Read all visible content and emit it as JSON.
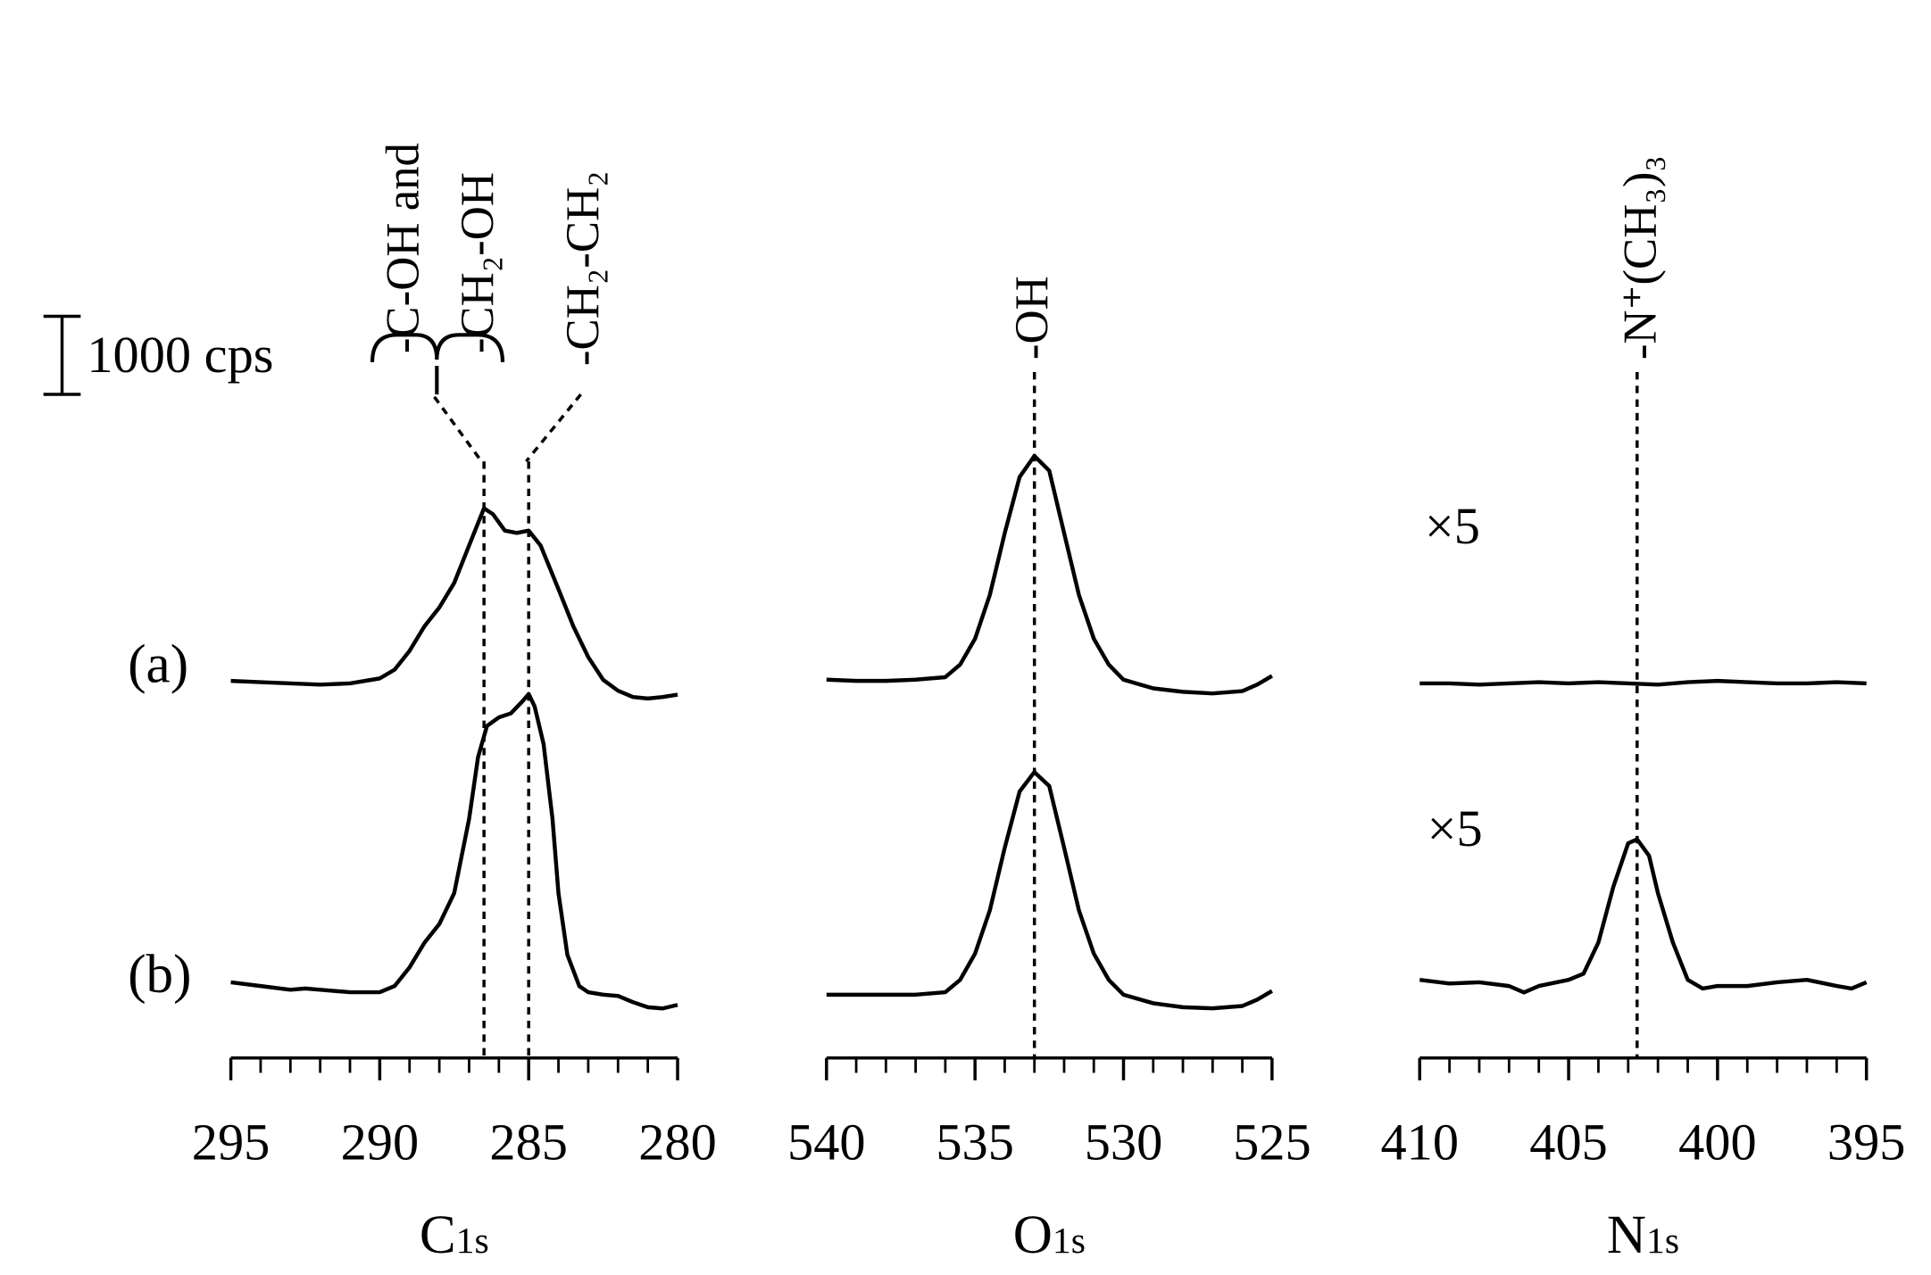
{
  "scale_bar": {
    "value": 1000,
    "label": "1000 cps"
  },
  "chart_data": [
    {
      "type": "line",
      "xlabel": "C",
      "xlabel_sub": "1s",
      "xlim": [
        295,
        280
      ],
      "xticks": [
        295,
        290,
        285,
        280
      ],
      "xticks_minor": [
        294,
        293,
        292,
        291,
        289,
        288,
        287,
        286,
        284,
        283,
        282,
        281
      ],
      "markers": [
        286.5,
        285
      ],
      "annotations": [
        "-C-OH and",
        "-CH₂-OH",
        "-CH₂-CH₂"
      ],
      "series": [
        {
          "name": "(a)",
          "color": "#000000",
          "x": [
            295,
            294,
            293,
            292,
            291,
            290,
            289.5,
            289,
            288.5,
            288,
            287.5,
            287,
            286.5,
            286.2,
            285.8,
            285.4,
            285,
            284.6,
            284,
            283.5,
            283,
            282.5,
            282,
            281.5,
            281,
            280.5,
            280
          ],
          "values": [
            16,
            0,
            -16,
            -32,
            -16,
            48,
            160,
            400,
            715,
            955,
            1270,
            1750,
            2225,
            2150,
            1940,
            1910,
            1940,
            1750,
            1190,
            715,
            320,
            30,
            -110,
            -190,
            -210,
            -190,
            -160
          ]
        },
        {
          "name": "(b)",
          "color": "#000000",
          "x": [
            295,
            294,
            293,
            292.5,
            292,
            291,
            290,
            289.5,
            289,
            288.5,
            288,
            287.5,
            287,
            286.7,
            286.4,
            286,
            285.6,
            285.2,
            285,
            284.8,
            284.5,
            284.2,
            284,
            283.7,
            283.3,
            283,
            282.5,
            282,
            281.5,
            281,
            280.5,
            280
          ],
          "values": [
            80,
            32,
            -16,
            0,
            -16,
            -48,
            -48,
            32,
            270,
            585,
            825,
            1220,
            2170,
            2960,
            3360,
            3470,
            3520,
            3680,
            3770,
            3610,
            3130,
            2170,
            1220,
            430,
            30,
            -48,
            -80,
            -95,
            -175,
            -240,
            -255,
            -210
          ]
        }
      ]
    },
    {
      "type": "line",
      "xlabel": "O",
      "xlabel_sub": "1s",
      "xlim": [
        540,
        525
      ],
      "xticks": [
        540,
        535,
        530,
        525
      ],
      "xticks_minor": [
        539,
        538,
        537,
        536,
        534,
        533,
        532,
        531,
        529,
        528,
        527,
        526
      ],
      "markers": [
        533
      ],
      "annotations": [
        "-OH"
      ],
      "series": [
        {
          "name": "(a)",
          "color": "#000000",
          "x": [
            540,
            539,
            538,
            537,
            536,
            535.5,
            535,
            534.5,
            534,
            533.5,
            533,
            532.5,
            532,
            531.5,
            531,
            530.5,
            530,
            529,
            528,
            527,
            526,
            525.5,
            525
          ],
          "values": [
            16,
            0,
            0,
            16,
            48,
            210,
            540,
            1100,
            1890,
            2610,
            2880,
            2690,
            1890,
            1100,
            540,
            210,
            16,
            -95,
            -140,
            -160,
            -130,
            -48,
            64
          ]
        },
        {
          "name": "(b)",
          "color": "#000000",
          "x": [
            540,
            539,
            538,
            537,
            536,
            535.5,
            535,
            534.5,
            534,
            533.5,
            533,
            532.5,
            532,
            531.5,
            531,
            530.5,
            530,
            529,
            528,
            527,
            526,
            525.5,
            525
          ],
          "values": [
            0,
            0,
            0,
            0,
            32,
            190,
            525,
            1080,
            1880,
            2600,
            2850,
            2670,
            1880,
            1080,
            525,
            190,
            0,
            -110,
            -160,
            -175,
            -145,
            -64,
            48
          ]
        }
      ]
    },
    {
      "type": "line",
      "xlabel": "N",
      "xlabel_sub": "1s",
      "xlim": [
        410,
        395
      ],
      "xticks": [
        410,
        405,
        400,
        395
      ],
      "xticks_minor": [
        409,
        408,
        407,
        406,
        404,
        403,
        402,
        401,
        399,
        398,
        397,
        396
      ],
      "markers": [
        402.7
      ],
      "annotations": [
        "-N⁺(CH₃)₃"
      ],
      "magnification_labels": [
        "×5",
        "×5"
      ],
      "series": [
        {
          "name": "(a)",
          "color": "#000000",
          "x": [
            410,
            409,
            408,
            407,
            406,
            405,
            404,
            403,
            402,
            401,
            400,
            399,
            398,
            397,
            396,
            395
          ],
          "values": [
            0,
            0,
            -16,
            0,
            16,
            0,
            16,
            0,
            -16,
            16,
            32,
            16,
            0,
            0,
            16,
            0
          ]
        },
        {
          "name": "(b)",
          "color": "#000000",
          "x": [
            410,
            409,
            408,
            407,
            406.5,
            406,
            405,
            404.5,
            404,
            403.5,
            403,
            402.7,
            402.3,
            402,
            401.5,
            401,
            400.5,
            400,
            399,
            398,
            397,
            396,
            395.5,
            395
          ],
          "values": [
            32,
            -16,
            0,
            -48,
            -130,
            -48,
            32,
            110,
            510,
            1220,
            1780,
            1830,
            1620,
            1140,
            510,
            32,
            -80,
            -48,
            -48,
            0,
            32,
            -48,
            -80,
            0
          ]
        }
      ]
    }
  ]
}
